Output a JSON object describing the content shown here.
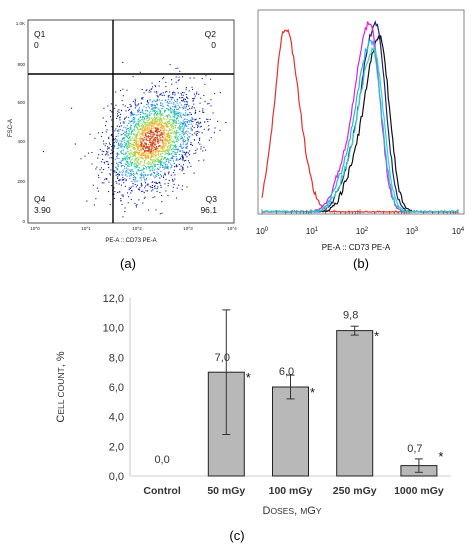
{
  "panel_a": {
    "panel_label": "(a)",
    "xlabel": "PE-A :: CD73 PE-A",
    "ylabel": "FSC-A",
    "x_ticks": [
      "10^0",
      "10^1",
      "10^2",
      "10^3",
      "10^4"
    ],
    "y_ticks": [
      "0",
      "200",
      "400",
      "600",
      "800",
      "1.0K"
    ],
    "quadrants": [
      {
        "name": "Q1",
        "value": "0"
      },
      {
        "name": "Q2",
        "value": "0"
      },
      {
        "name": "Q3",
        "value": "96.1"
      },
      {
        "name": "Q4",
        "value": "3.90"
      }
    ]
  },
  "panel_b": {
    "panel_label": "(b)",
    "xlabel": "PE-A :: CD73 PE-A",
    "x_ticks": [
      "10",
      "10",
      "10",
      "10",
      "10"
    ],
    "x_exps": [
      "0",
      "1",
      "2",
      "3",
      "4"
    ]
  },
  "panel_c": {
    "panel_label": "(c)"
  },
  "chart_data": [
    {
      "type": "scatter",
      "title": "",
      "xlabel": "PE-A :: CD73 PE-A",
      "ylabel": "FSC-A",
      "x_scale": "log",
      "xlim": [
        1,
        10000
      ],
      "ylim": [
        0,
        1024
      ],
      "gates": {
        "x_threshold": 60,
        "y_threshold": 750
      },
      "quadrant_percentages": {
        "Q1": 0,
        "Q2": 0,
        "Q3": 96.1,
        "Q4": 3.9
      },
      "population_center": {
        "x": 250,
        "y": 420
      },
      "colors": [
        "#0a1aa8",
        "#1e8fe0",
        "#22c7a4",
        "#9ad84a",
        "#f0b02a",
        "#d44a1c"
      ]
    },
    {
      "type": "line",
      "title": "",
      "xlabel": "PE-A :: CD73 PE-A",
      "x_scale": "log",
      "xlim": [
        1,
        10000
      ],
      "grid": false,
      "series": [
        {
          "color": "#e8302a",
          "peak_x": 3,
          "peak_height": 0.97
        },
        {
          "color": "#111111",
          "peak_x": 250,
          "peak_height": 0.92
        },
        {
          "color": "#1a237e",
          "peak_x": 210,
          "peak_height": 0.99
        },
        {
          "color": "#e020e0",
          "peak_x": 160,
          "peak_height": 1.0
        },
        {
          "color": "#2bb0e8",
          "peak_x": 170,
          "peak_height": 0.9
        },
        {
          "color": "#38d0c0",
          "peak_x": 190,
          "peak_height": 0.86
        }
      ]
    },
    {
      "type": "bar",
      "title": "",
      "xlabel": "Doses, mGy",
      "ylabel": "Cell count, %",
      "categories": [
        "Control",
        "50 mGy",
        "100 mGy",
        "250 mGy",
        "1000 mGy"
      ],
      "values": [
        0.0,
        7.0,
        6.0,
        9.8,
        0.7
      ],
      "value_labels": [
        "0,0",
        "7,0",
        "6,0",
        "9,8",
        "0,7"
      ],
      "errors": [
        0,
        4.2,
        0.8,
        0.3,
        0.45
      ],
      "significance": [
        "",
        "*",
        "*",
        "*",
        "*"
      ],
      "ylim": [
        0,
        12
      ],
      "y_ticks": [
        "0,0",
        "2,0",
        "4,0",
        "6,0",
        "8,0",
        "10,0",
        "12,0"
      ],
      "bar_color": "#b8b8b8",
      "grid": false
    }
  ]
}
